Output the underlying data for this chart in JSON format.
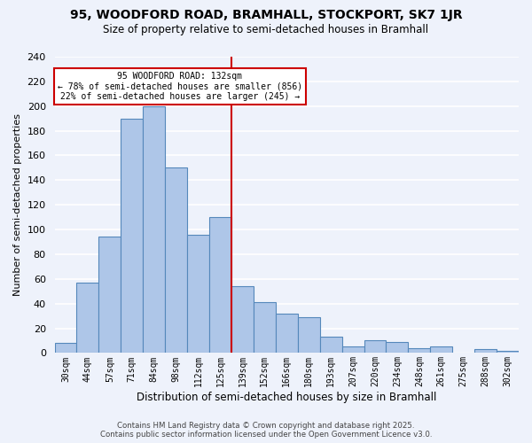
{
  "title": "95, WOODFORD ROAD, BRAMHALL, STOCKPORT, SK7 1JR",
  "subtitle": "Size of property relative to semi-detached houses in Bramhall",
  "xlabel": "Distribution of semi-detached houses by size in Bramhall",
  "ylabel": "Number of semi-detached properties",
  "bar_labels": [
    "30sqm",
    "44sqm",
    "57sqm",
    "71sqm",
    "84sqm",
    "98sqm",
    "112sqm",
    "125sqm",
    "139sqm",
    "152sqm",
    "166sqm",
    "180sqm",
    "193sqm",
    "207sqm",
    "220sqm",
    "234sqm",
    "248sqm",
    "261sqm",
    "275sqm",
    "288sqm",
    "302sqm"
  ],
  "bar_values": [
    8,
    57,
    94,
    190,
    200,
    150,
    96,
    110,
    54,
    41,
    32,
    29,
    13,
    5,
    10,
    9,
    4,
    5,
    0,
    3,
    2
  ],
  "bar_color": "#aec6e8",
  "bar_edge_color": "#5588bb",
  "ylim": [
    0,
    240
  ],
  "yticks": [
    0,
    20,
    40,
    60,
    80,
    100,
    120,
    140,
    160,
    180,
    200,
    220,
    240
  ],
  "vline_index": 7.5,
  "annotation_title": "95 WOODFORD ROAD: 132sqm",
  "annotation_line1": "← 78% of semi-detached houses are smaller (856)",
  "annotation_line2": "22% of semi-detached houses are larger (245) →",
  "annotation_box_color": "#ffffff",
  "annotation_box_edge": "#cc0000",
  "vline_color": "#cc0000",
  "footer1": "Contains HM Land Registry data © Crown copyright and database right 2025.",
  "footer2": "Contains public sector information licensed under the Open Government Licence v3.0.",
  "background_color": "#eef2fb",
  "grid_color": "#ffffff"
}
